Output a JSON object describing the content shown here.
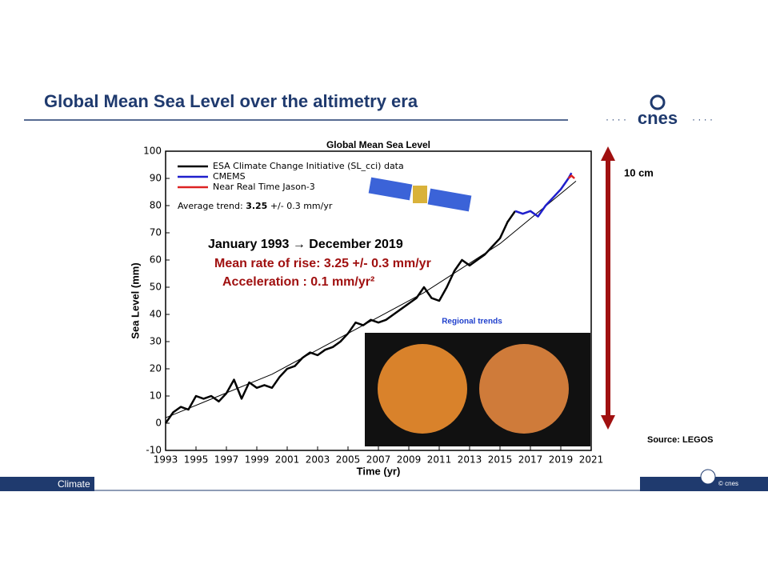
{
  "slide": {
    "title": "Global Mean Sea Level over the altimetry era",
    "logo": "cnes",
    "scale_label": "10 cm",
    "source": "Source: LEGOS",
    "footer_left": "Climate",
    "footer_right": "© cnes",
    "inset_title": "Regional trends"
  },
  "chart_data": {
    "type": "line",
    "title": "Global Mean Sea Level",
    "x_label": "Time (yr)",
    "y_label": "Sea Level (mm)",
    "xlim": [
      1993,
      2021
    ],
    "xticks": [
      1993,
      1995,
      1997,
      1999,
      2001,
      2003,
      2005,
      2007,
      2009,
      2011,
      2013,
      2015,
      2017,
      2019,
      2021
    ],
    "ylim": [
      -10,
      100
    ],
    "yticks": [
      -10,
      0,
      10,
      20,
      30,
      40,
      50,
      60,
      70,
      80,
      90,
      100
    ],
    "legend": "upper left",
    "trend_note": [
      "Average trend: ",
      "3.25",
      " +/- 0.3 mm/yr"
    ],
    "annotations": [
      "January 1993 → December 2019",
      "Mean rate of rise: 3.25 +/- 0.3 mm/yr",
      "Acceleration : 0.1 mm/yr²"
    ],
    "series": [
      {
        "name": "ESA Climate Change Initiative (SL_cci) data",
        "color": "#000000",
        "x": [
          1993,
          1993.5,
          1994,
          1994.5,
          1995,
          1995.5,
          1996,
          1996.5,
          1997,
          1997.5,
          1998,
          1998.5,
          1999,
          1999.5,
          2000,
          2000.5,
          2001,
          2001.5,
          2002,
          2002.5,
          2003,
          2003.5,
          2004,
          2004.5,
          2005,
          2005.5,
          2006,
          2006.5,
          2007,
          2007.5,
          2008,
          2008.5,
          2009,
          2009.5,
          2010,
          2010.5,
          2011,
          2011.5,
          2012,
          2012.5,
          2013,
          2013.5,
          2014,
          2014.5,
          2015,
          2015.5,
          2016
        ],
        "values": [
          0,
          4,
          6,
          5,
          10,
          9,
          10,
          8,
          11,
          16,
          9,
          15,
          13,
          14,
          13,
          17,
          20,
          21,
          24,
          26,
          25,
          27,
          28,
          30,
          33,
          37,
          36,
          38,
          37,
          38,
          40,
          42,
          44,
          46,
          50,
          46,
          45,
          50,
          56,
          60,
          58,
          60,
          62,
          65,
          68,
          74,
          78
        ]
      },
      {
        "name": "CMEMS",
        "color": "#1f1fcc",
        "x": [
          2016,
          2016.5,
          2017,
          2017.5,
          2018,
          2018.5,
          2019,
          2019.5,
          2019.7
        ],
        "values": [
          78,
          77,
          78,
          76,
          80,
          83,
          86,
          90,
          92
        ]
      },
      {
        "name": "Near Real Time Jason-3",
        "color": "#dd2222",
        "x": [
          2019.5,
          2019.7,
          2019.9
        ],
        "values": [
          90,
          91,
          90
        ]
      }
    ],
    "trend": {
      "color": "#000000",
      "x": [
        1993,
        2000,
        2005,
        2010,
        2015,
        2020
      ],
      "values": [
        2,
        18,
        33,
        48,
        66,
        89
      ]
    }
  }
}
